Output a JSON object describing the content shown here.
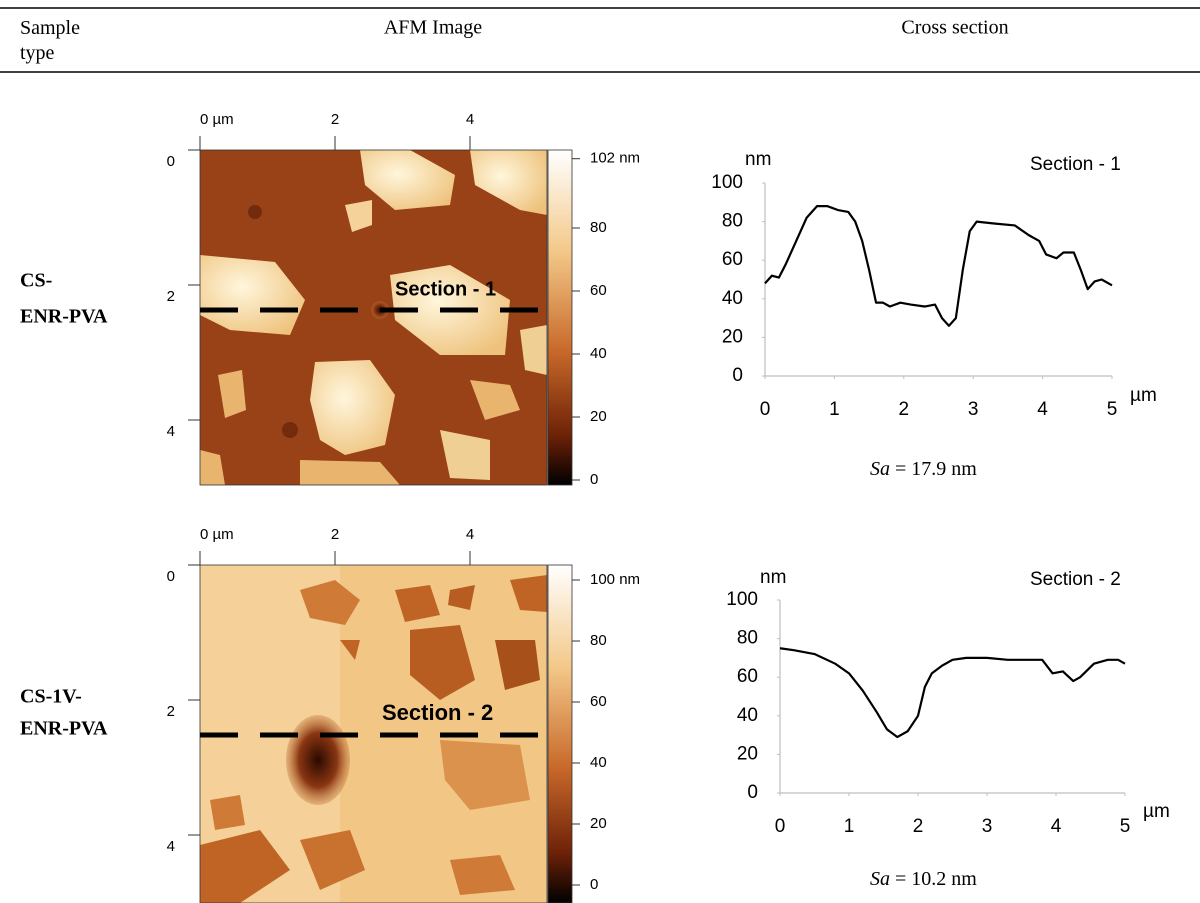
{
  "table": {
    "headers": [
      "Sample type",
      "AFM Image",
      "Cross section"
    ],
    "rows": [
      {
        "sample": [
          "CS-",
          "ENR-PVA"
        ],
        "afm": {
          "xticks": [
            {
              "value": 0,
              "label": "0 µm"
            },
            2,
            4
          ],
          "yticks": [
            0,
            2,
            4
          ],
          "colorbar_ticks": [
            {
              "value": 102,
              "label": "102 nm"
            },
            80,
            60,
            40,
            20,
            0
          ]
        },
        "sa_symbol": "Sa",
        "sa": "= 17.9 nm"
      },
      {
        "sample": [
          "CS-1V-",
          "ENR-PVA"
        ],
        "afm": {
          "xticks": [
            {
              "value": 0,
              "label": "0 µm"
            },
            2,
            4
          ],
          "yticks": [
            0,
            2,
            4
          ],
          "colorbar_ticks": [
            {
              "value": 100,
              "label": "100 nm"
            },
            80,
            60,
            40,
            20,
            0
          ]
        },
        "sa_symbol": "Sa",
        "sa": "= 10.2 nm"
      }
    ]
  },
  "chart_data": [
    {
      "type": "line",
      "title": "Section - 1",
      "y_label": "nm",
      "x_label": "µm",
      "color": "#000000",
      "x": [
        0,
        0.1,
        0.2,
        0.3,
        0.45,
        0.6,
        0.75,
        0.9,
        1.05,
        1.2,
        1.3,
        1.4,
        1.5,
        1.6,
        1.7,
        1.8,
        1.95,
        2.1,
        2.3,
        2.45,
        2.55,
        2.65,
        2.75,
        2.85,
        2.95,
        3.05,
        3.3,
        3.6,
        3.8,
        3.95,
        4.05,
        4.2,
        4.3,
        4.45,
        4.55,
        4.65,
        4.75,
        4.85,
        5
      ],
      "values": [
        48,
        52,
        51,
        58,
        70,
        82,
        88,
        88,
        86,
        85,
        80,
        70,
        55,
        38,
        38,
        36,
        38,
        37,
        36,
        37,
        30,
        26,
        30,
        55,
        75,
        80,
        79,
        78,
        73,
        70,
        63,
        61,
        64,
        64,
        55,
        45,
        49,
        50,
        47
      ],
      "xlim": [
        0,
        5
      ],
      "ylim": [
        0,
        100
      ],
      "xticks": [
        0,
        1,
        2,
        3,
        4,
        5
      ],
      "yticks": [
        0,
        20,
        40,
        60,
        80,
        100
      ]
    },
    {
      "type": "line",
      "title": "Section - 2",
      "y_label": "nm",
      "x_label": "µm",
      "color": "#000000",
      "x": [
        0,
        0.2,
        0.5,
        0.8,
        1.0,
        1.2,
        1.4,
        1.55,
        1.7,
        1.85,
        2.0,
        2.1,
        2.2,
        2.35,
        2.5,
        2.7,
        3.0,
        3.3,
        3.6,
        3.8,
        3.95,
        4.1,
        4.25,
        4.35,
        4.55,
        4.75,
        4.9,
        5
      ],
      "values": [
        75,
        74,
        72,
        67,
        62,
        53,
        42,
        33,
        29,
        32,
        40,
        55,
        62,
        66,
        69,
        70,
        70,
        69,
        69,
        69,
        62,
        63,
        58,
        60,
        67,
        69,
        69,
        67
      ],
      "xlim": [
        0,
        5
      ],
      "ylim": [
        0,
        100
      ],
      "xticks": [
        0,
        1,
        2,
        3,
        4,
        5
      ],
      "yticks": [
        0,
        20,
        40,
        60,
        80,
        100
      ]
    }
  ]
}
